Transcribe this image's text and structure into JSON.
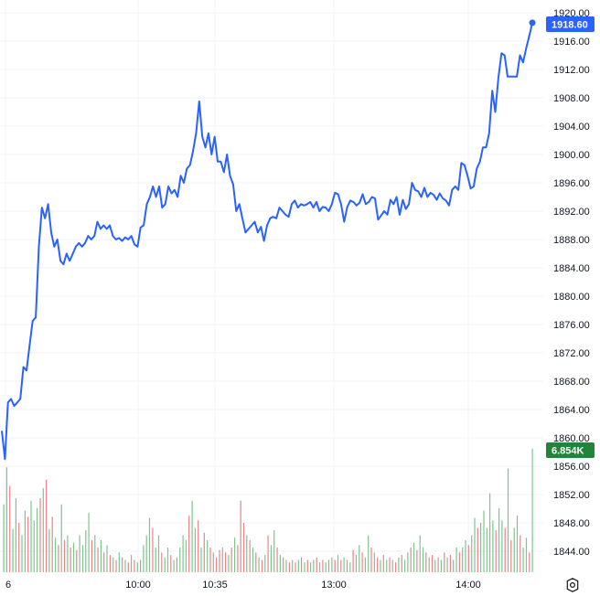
{
  "chart_data": {
    "type": "line",
    "y_ticks": [
      "1920.00",
      "1916.00",
      "1912.00",
      "1908.00",
      "1904.00",
      "1900.00",
      "1896.00",
      "1892.00",
      "1888.00",
      "1884.00",
      "1880.00",
      "1876.00",
      "1872.00",
      "1868.00",
      "1864.00",
      "1860.00",
      "1856.00",
      "1852.00",
      "1848.00",
      "1844.00"
    ],
    "x_ticks": [
      "6",
      "10:00",
      "10:35",
      "13:00",
      "14:00"
    ],
    "ylim": [
      1842,
      1922
    ],
    "price_series": [
      1861,
      1857,
      1865,
      1865.5,
      1864.5,
      1865,
      1865.5,
      1870,
      1869.5,
      1873,
      1876.5,
      1877,
      1887,
      1892.5,
      1891,
      1893,
      1889,
      1887,
      1888,
      1885,
      1884.5,
      1886,
      1885,
      1886,
      1887,
      1887.5,
      1887,
      1887.5,
      1888.5,
      1888,
      1888.5,
      1890.5,
      1889.5,
      1890,
      1889.5,
      1890,
      1888.5,
      1888,
      1888.2,
      1887.8,
      1888.3,
      1888,
      1888.5,
      1887.3,
      1887,
      1889.7,
      1890,
      1893,
      1894,
      1895.5,
      1894,
      1895.5,
      1892.5,
      1893,
      1895.5,
      1894.5,
      1895,
      1894,
      1897,
      1896,
      1898,
      1898.5,
      1900.5,
      1903,
      1907.5,
      1902.5,
      1901,
      1903,
      1900,
      1902.5,
      1899,
      1899,
      1897.5,
      1900,
      1897,
      1895.8,
      1892,
      1893,
      1891,
      1889,
      1889.5,
      1890,
      1890.5,
      1889,
      1889.8,
      1887.8,
      1890,
      1891,
      1891.2,
      1891,
      1892.5,
      1892,
      1891.5,
      1891.2,
      1893,
      1893.5,
      1892.5,
      1893,
      1892.8,
      1893,
      1893.3,
      1892.5,
      1893.3,
      1892,
      1892.6,
      1892.5,
      1892,
      1893,
      1894.6,
      1894.4,
      1893,
      1890.5,
      1892.6,
      1893.5,
      1893.3,
      1892.8,
      1893.2,
      1894.4,
      1893,
      1893.3,
      1894,
      1893.8,
      1890.8,
      1891.4,
      1892,
      1891.5,
      1893.6,
      1893,
      1894,
      1891.5,
      1893.6,
      1892.3,
      1893,
      1896,
      1895,
      1894.8,
      1894,
      1895.3,
      1894,
      1894.6,
      1894.3,
      1893.6,
      1894.5,
      1893.8,
      1893.5,
      1892.8,
      1895,
      1895.5,
      1895,
      1898.8,
      1898.5,
      1897,
      1895.2,
      1895.5,
      1898,
      1899,
      1901,
      1901,
      1903,
      1909,
      1906,
      1910.8,
      1914.3,
      1914,
      1911,
      1911,
      1911,
      1911,
      1914,
      1913,
      1915,
      1916.7,
      1918.6
    ],
    "last_price": "1918.60",
    "volume_label": "6.854K",
    "volume_max": 6854,
    "volume_bars": [
      {
        "v": 0.55,
        "up": true
      },
      {
        "v": 0.85,
        "up": true
      },
      {
        "v": 0.7,
        "up": false
      },
      {
        "v": 0.35,
        "up": true
      },
      {
        "v": 0.6,
        "up": true
      },
      {
        "v": 0.4,
        "up": false
      },
      {
        "v": 0.3,
        "up": true
      },
      {
        "v": 0.5,
        "up": true
      },
      {
        "v": 0.45,
        "up": false
      },
      {
        "v": 0.58,
        "up": true
      },
      {
        "v": 0.42,
        "up": true
      },
      {
        "v": 0.52,
        "up": true
      },
      {
        "v": 0.6,
        "up": false
      },
      {
        "v": 0.68,
        "up": true
      },
      {
        "v": 0.75,
        "up": false
      },
      {
        "v": 0.35,
        "up": true
      },
      {
        "v": 0.45,
        "up": false
      },
      {
        "v": 0.28,
        "up": true
      },
      {
        "v": 0.22,
        "up": false
      },
      {
        "v": 0.55,
        "up": true
      },
      {
        "v": 0.26,
        "up": false
      },
      {
        "v": 0.3,
        "up": true
      },
      {
        "v": 0.2,
        "up": false
      },
      {
        "v": 0.24,
        "up": true
      },
      {
        "v": 0.18,
        "up": false
      },
      {
        "v": 0.3,
        "up": true
      },
      {
        "v": 0.22,
        "up": true
      },
      {
        "v": 0.34,
        "up": true
      },
      {
        "v": 0.48,
        "up": true
      },
      {
        "v": 0.26,
        "up": false
      },
      {
        "v": 0.3,
        "up": true
      },
      {
        "v": 0.2,
        "up": false
      },
      {
        "v": 0.26,
        "up": true
      },
      {
        "v": 0.16,
        "up": false
      },
      {
        "v": 0.22,
        "up": true
      },
      {
        "v": 0.14,
        "up": false
      },
      {
        "v": 0.12,
        "up": true
      },
      {
        "v": 0.1,
        "up": false
      },
      {
        "v": 0.16,
        "up": true
      },
      {
        "v": 0.12,
        "up": false
      },
      {
        "v": 0.1,
        "up": true
      },
      {
        "v": 0.08,
        "up": false
      },
      {
        "v": 0.14,
        "up": true
      },
      {
        "v": 0.1,
        "up": false
      },
      {
        "v": 0.08,
        "up": true
      },
      {
        "v": 0.1,
        "up": false
      },
      {
        "v": 0.22,
        "up": true
      },
      {
        "v": 0.3,
        "up": true
      },
      {
        "v": 0.44,
        "up": true
      },
      {
        "v": 0.36,
        "up": false
      },
      {
        "v": 0.2,
        "up": true
      },
      {
        "v": 0.3,
        "up": true
      },
      {
        "v": 0.16,
        "up": false
      },
      {
        "v": 0.12,
        "up": true
      },
      {
        "v": 0.2,
        "up": true
      },
      {
        "v": 0.14,
        "up": false
      },
      {
        "v": 0.1,
        "up": true
      },
      {
        "v": 0.12,
        "up": false
      },
      {
        "v": 0.2,
        "up": true
      },
      {
        "v": 0.3,
        "up": true
      },
      {
        "v": 0.26,
        "up": true
      },
      {
        "v": 0.46,
        "up": false
      },
      {
        "v": 0.58,
        "up": true
      },
      {
        "v": 0.36,
        "up": true
      },
      {
        "v": 0.42,
        "up": false
      },
      {
        "v": 0.2,
        "up": true
      },
      {
        "v": 0.32,
        "up": false
      },
      {
        "v": 0.26,
        "up": true
      },
      {
        "v": 0.2,
        "up": false
      },
      {
        "v": 0.16,
        "up": true
      },
      {
        "v": 0.12,
        "up": false
      },
      {
        "v": 0.18,
        "up": false
      },
      {
        "v": 0.2,
        "up": true
      },
      {
        "v": 0.16,
        "up": false
      },
      {
        "v": 0.14,
        "up": true
      },
      {
        "v": 0.2,
        "up": false
      },
      {
        "v": 0.28,
        "up": true
      },
      {
        "v": 0.22,
        "up": false
      },
      {
        "v": 0.58,
        "up": false
      },
      {
        "v": 0.4,
        "up": false
      },
      {
        "v": 0.3,
        "up": true
      },
      {
        "v": 0.26,
        "up": false
      },
      {
        "v": 0.2,
        "up": true
      },
      {
        "v": 0.16,
        "up": false
      },
      {
        "v": 0.12,
        "up": true
      },
      {
        "v": 0.1,
        "up": false
      },
      {
        "v": 0.14,
        "up": true
      },
      {
        "v": 0.3,
        "up": false
      },
      {
        "v": 0.22,
        "up": true
      },
      {
        "v": 0.34,
        "up": true
      },
      {
        "v": 0.2,
        "up": false
      },
      {
        "v": 0.14,
        "up": true
      },
      {
        "v": 0.12,
        "up": false
      },
      {
        "v": 0.1,
        "up": true
      },
      {
        "v": 0.08,
        "up": false
      },
      {
        "v": 0.1,
        "up": true
      },
      {
        "v": 0.08,
        "up": false
      },
      {
        "v": 0.1,
        "up": true
      },
      {
        "v": 0.12,
        "up": false
      },
      {
        "v": 0.08,
        "up": true
      },
      {
        "v": 0.1,
        "up": false
      },
      {
        "v": 0.08,
        "up": true
      },
      {
        "v": 0.1,
        "up": true
      },
      {
        "v": 0.12,
        "up": false
      },
      {
        "v": 0.08,
        "up": true
      },
      {
        "v": 0.1,
        "up": false
      },
      {
        "v": 0.08,
        "up": true
      },
      {
        "v": 0.1,
        "up": false
      },
      {
        "v": 0.12,
        "up": true
      },
      {
        "v": 0.1,
        "up": false
      },
      {
        "v": 0.14,
        "up": true
      },
      {
        "v": 0.1,
        "up": false
      },
      {
        "v": 0.12,
        "up": true
      },
      {
        "v": 0.1,
        "up": false
      },
      {
        "v": 0.08,
        "up": true
      },
      {
        "v": 0.18,
        "up": false
      },
      {
        "v": 0.14,
        "up": true
      },
      {
        "v": 0.22,
        "up": true
      },
      {
        "v": 0.16,
        "up": false
      },
      {
        "v": 0.12,
        "up": true
      },
      {
        "v": 0.3,
        "up": true
      },
      {
        "v": 0.2,
        "up": false
      },
      {
        "v": 0.16,
        "up": true
      },
      {
        "v": 0.12,
        "up": false
      },
      {
        "v": 0.1,
        "up": true
      },
      {
        "v": 0.14,
        "up": false
      },
      {
        "v": 0.1,
        "up": true
      },
      {
        "v": 0.12,
        "up": false
      },
      {
        "v": 0.1,
        "up": true
      },
      {
        "v": 0.08,
        "up": false
      },
      {
        "v": 0.12,
        "up": true
      },
      {
        "v": 0.14,
        "up": false
      },
      {
        "v": 0.1,
        "up": true
      },
      {
        "v": 0.16,
        "up": true
      },
      {
        "v": 0.2,
        "up": false
      },
      {
        "v": 0.24,
        "up": true
      },
      {
        "v": 0.18,
        "up": false
      },
      {
        "v": 0.3,
        "up": true
      },
      {
        "v": 0.2,
        "up": true
      },
      {
        "v": 0.16,
        "up": false
      },
      {
        "v": 0.12,
        "up": true
      },
      {
        "v": 0.14,
        "up": false
      },
      {
        "v": 0.1,
        "up": true
      },
      {
        "v": 0.12,
        "up": false
      },
      {
        "v": 0.1,
        "up": true
      },
      {
        "v": 0.16,
        "up": false
      },
      {
        "v": 0.12,
        "up": true
      },
      {
        "v": 0.14,
        "up": false
      },
      {
        "v": 0.1,
        "up": true
      },
      {
        "v": 0.2,
        "up": true
      },
      {
        "v": 0.16,
        "up": false
      },
      {
        "v": 0.2,
        "up": true
      },
      {
        "v": 0.26,
        "up": true
      },
      {
        "v": 0.22,
        "up": false
      },
      {
        "v": 0.3,
        "up": true
      },
      {
        "v": 0.44,
        "up": true
      },
      {
        "v": 0.36,
        "up": false
      },
      {
        "v": 0.4,
        "up": true
      },
      {
        "v": 0.5,
        "up": true
      },
      {
        "v": 0.36,
        "up": true
      },
      {
        "v": 0.64,
        "up": true
      },
      {
        "v": 0.42,
        "up": true
      },
      {
        "v": 0.34,
        "up": false
      },
      {
        "v": 0.52,
        "up": true
      },
      {
        "v": 0.42,
        "up": true
      },
      {
        "v": 0.36,
        "up": false
      },
      {
        "v": 0.84,
        "up": true
      },
      {
        "v": 0.26,
        "up": false
      },
      {
        "v": 0.36,
        "up": true
      },
      {
        "v": 0.46,
        "up": true
      },
      {
        "v": 0.3,
        "up": false
      },
      {
        "v": 0.2,
        "up": true
      },
      {
        "v": 0.28,
        "up": true
      },
      {
        "v": 0.16,
        "up": false
      },
      {
        "v": 1.0,
        "up": true
      }
    ],
    "colors": {
      "line": "#2962ff",
      "grid": "#f0f3fa",
      "vol_up": "#7fc48e",
      "vol_down": "#e8858a",
      "price_badge": "#2962ff",
      "volume_badge": "#22843b",
      "axis_text": "#131722"
    },
    "grid": true,
    "legend": "none"
  },
  "icons": {
    "settings": "gear-icon"
  }
}
